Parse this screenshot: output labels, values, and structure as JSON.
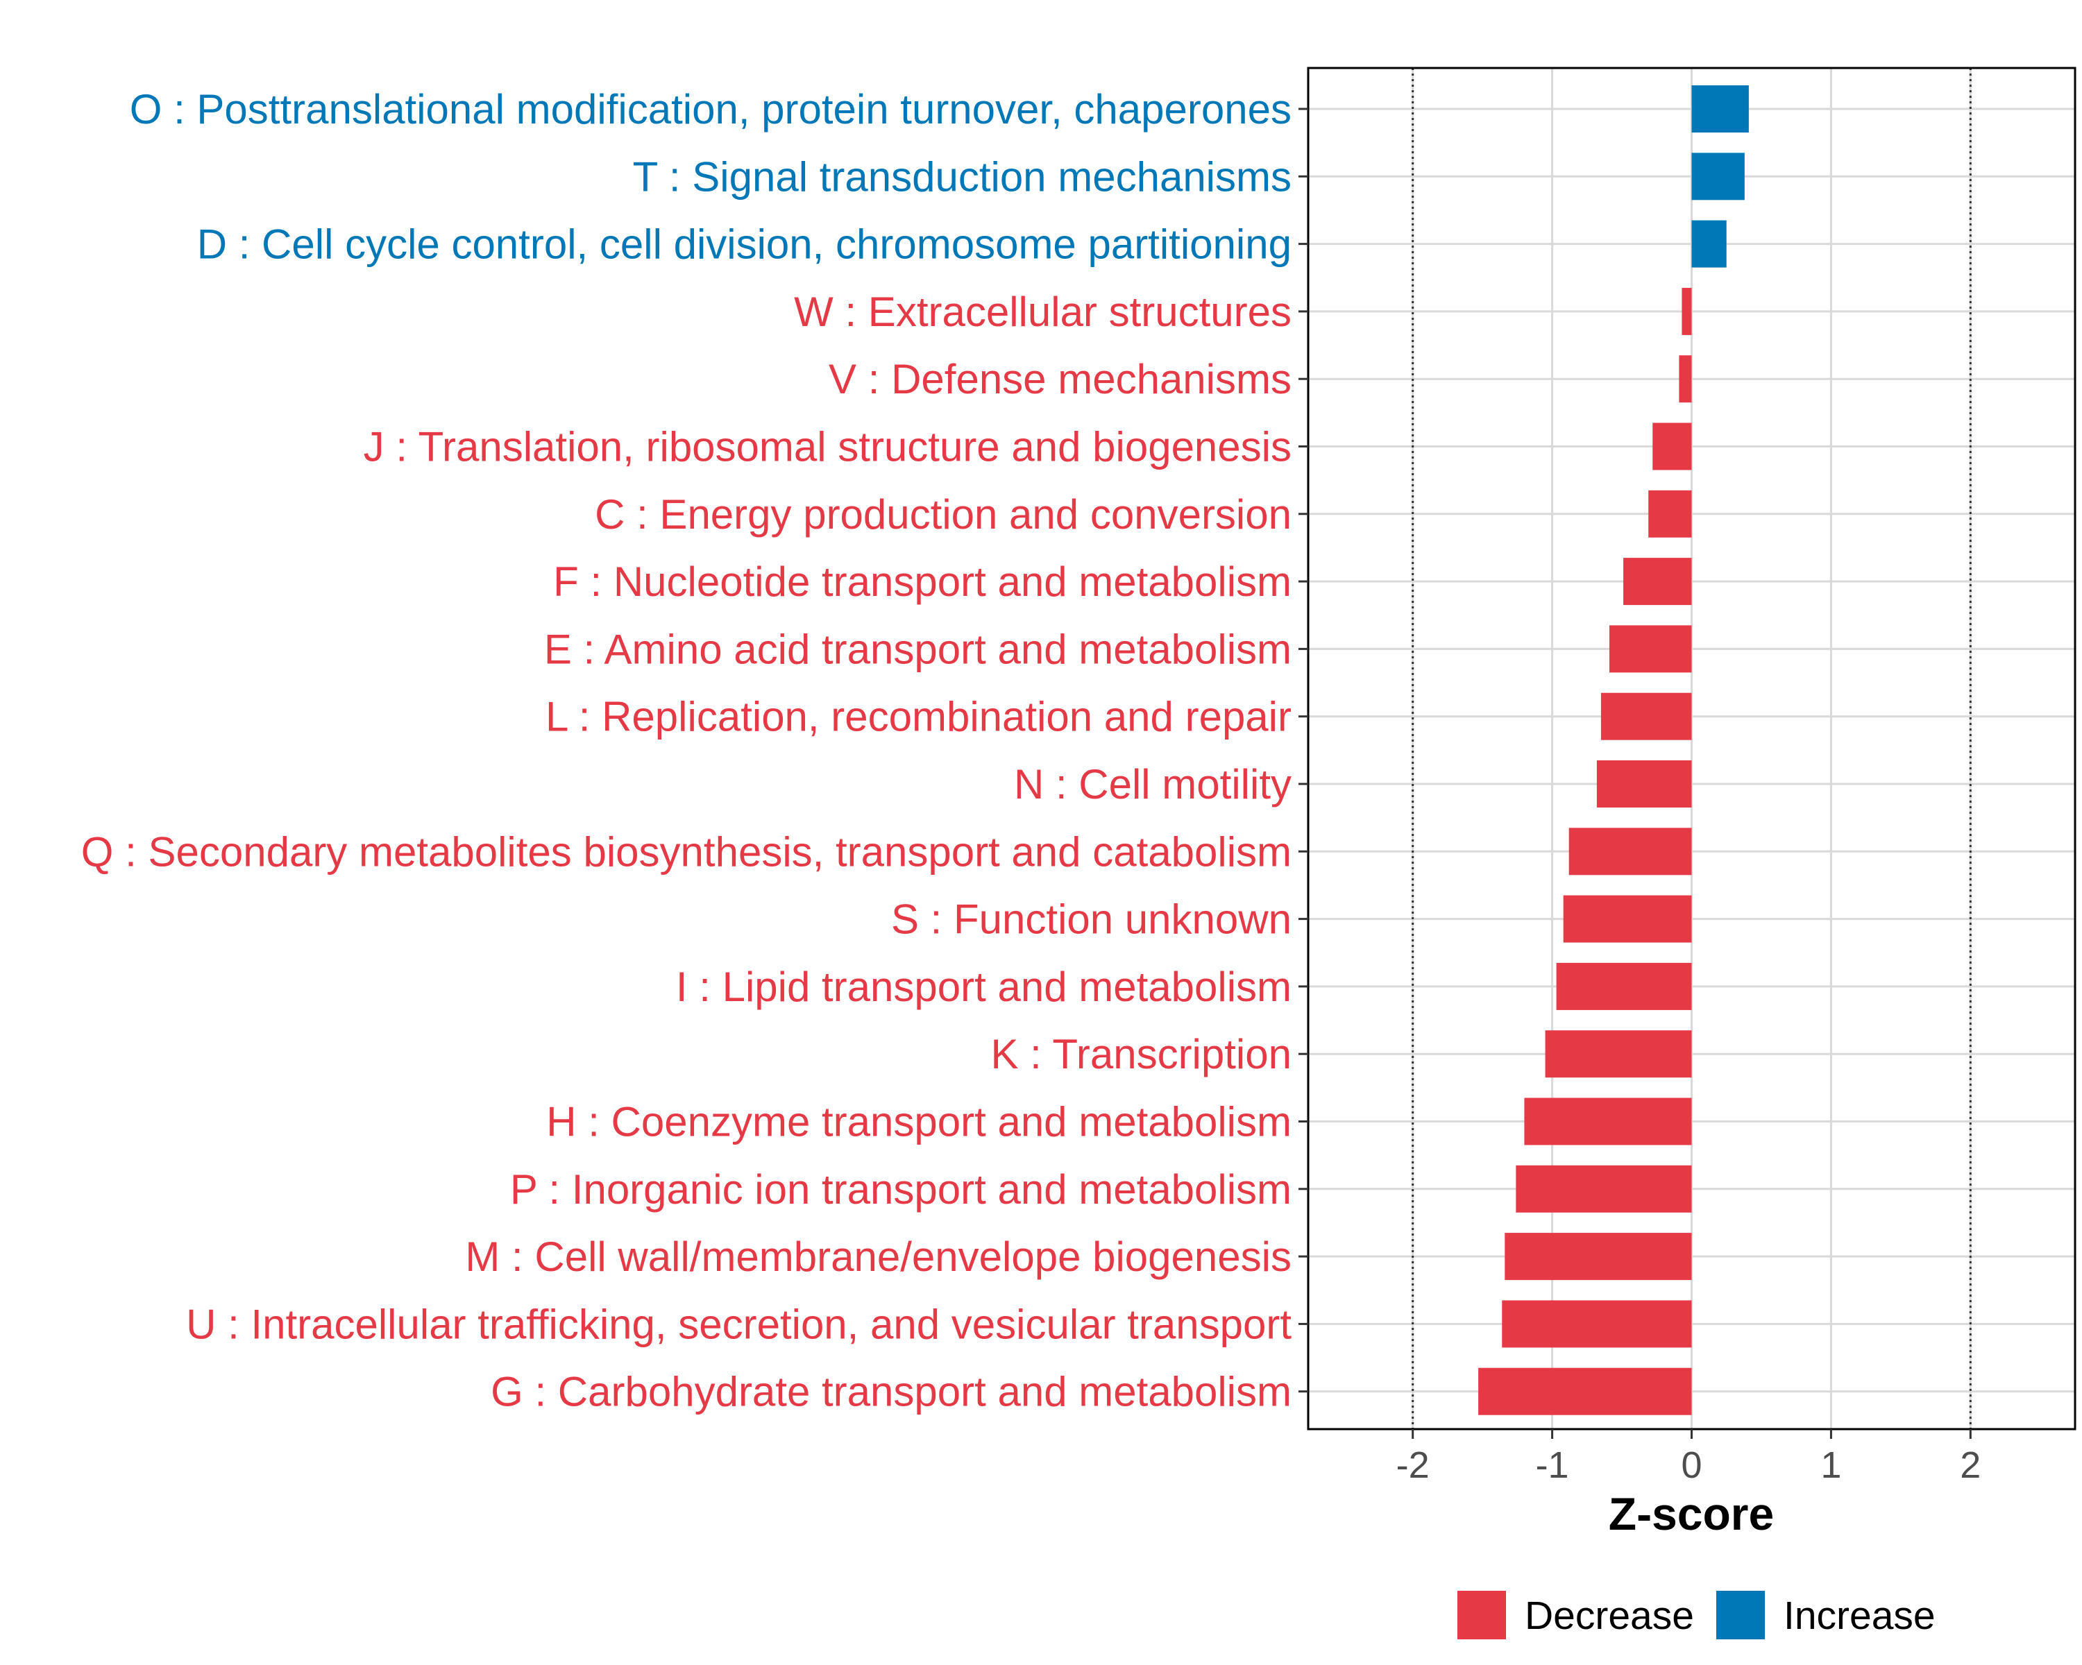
{
  "chart_data": {
    "type": "bar",
    "orientation": "horizontal",
    "title": "",
    "xlabel": "Z-score",
    "ylabel": "",
    "xlim": [
      -2.75,
      2.75
    ],
    "xticks": [
      -2,
      -1,
      0,
      1,
      2
    ],
    "xtick_labels": [
      "-2",
      "-1",
      "0",
      "1",
      "2"
    ],
    "reference_lines": [
      -2,
      2
    ],
    "grid": true,
    "legend_position": "bottom",
    "colors": {
      "Decrease": "#e63946",
      "Increase": "#0077b6"
    },
    "legend": [
      {
        "label": "Decrease",
        "color": "#e63946"
      },
      {
        "label": "Increase",
        "color": "#0077b6"
      }
    ],
    "categories": [
      "O : Posttranslational modification, protein turnover, chaperones",
      "T : Signal transduction mechanisms",
      "D : Cell cycle control, cell division, chromosome partitioning",
      "W : Extracellular structures",
      "V : Defense mechanisms",
      "J : Translation, ribosomal structure and biogenesis",
      "C : Energy production and conversion",
      "F : Nucleotide transport and metabolism",
      "E : Amino acid transport and metabolism",
      "L : Replication, recombination and repair",
      "N : Cell motility",
      "Q : Secondary metabolites biosynthesis, transport and catabolism",
      "S : Function unknown",
      "I : Lipid transport and metabolism",
      "K : Transcription",
      "H : Coenzyme transport and metabolism",
      "P : Inorganic ion transport and metabolism",
      "M : Cell wall/membrane/envelope biogenesis",
      "U : Intracellular trafficking, secretion, and vesicular transport",
      "G : Carbohydrate transport and metabolism"
    ],
    "values": [
      0.41,
      0.38,
      0.25,
      -0.07,
      -0.09,
      -0.28,
      -0.31,
      -0.49,
      -0.59,
      -0.65,
      -0.68,
      -0.88,
      -0.92,
      -0.97,
      -1.05,
      -1.2,
      -1.26,
      -1.34,
      -1.36,
      -1.53
    ],
    "groups": [
      "Increase",
      "Increase",
      "Increase",
      "Decrease",
      "Decrease",
      "Decrease",
      "Decrease",
      "Decrease",
      "Decrease",
      "Decrease",
      "Decrease",
      "Decrease",
      "Decrease",
      "Decrease",
      "Decrease",
      "Decrease",
      "Decrease",
      "Decrease",
      "Decrease",
      "Decrease"
    ]
  }
}
